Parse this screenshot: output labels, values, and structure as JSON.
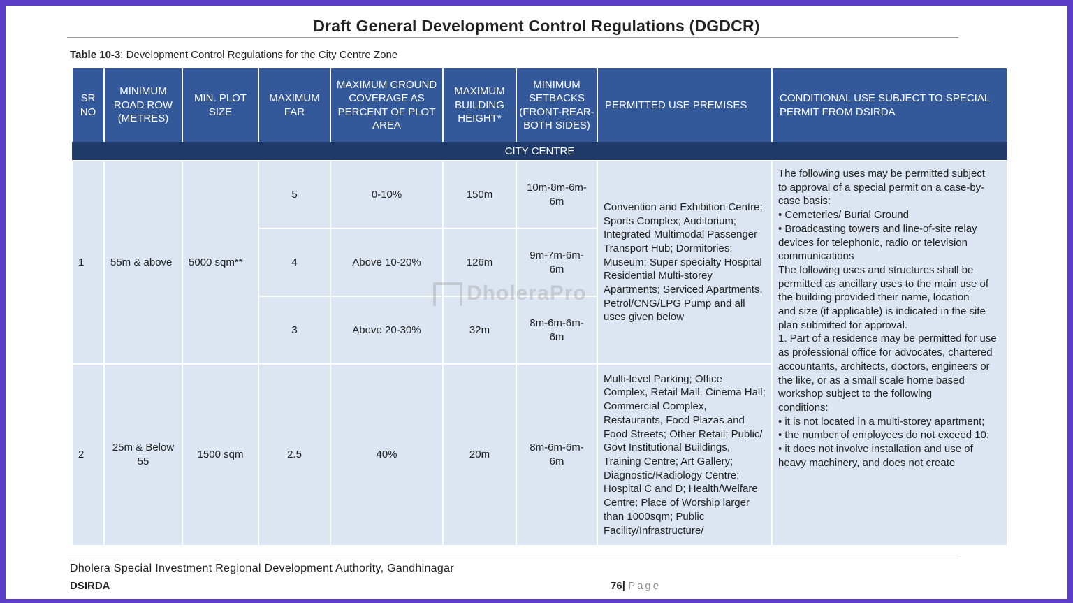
{
  "document": {
    "title": "Draft General Development Control Regulations (DGDCR)",
    "table_caption_label": "Table 10-3",
    "table_caption_text": ": Development Control Regulations for the City Centre Zone"
  },
  "table": {
    "headers": [
      "SR NO",
      "MINIMUM ROAD ROW (METRES)",
      "MIN. PLOT SIZE",
      "MAXIMUM FAR",
      "MAXIMUM GROUND COVERAGE AS PERCENT OF PLOT AREA",
      "MAXIMUM BUILDING HEIGHT*",
      "MINIMUM SETBACKS (FRONT-REAR-BOTH SIDES)",
      "PERMITTED USE PREMISES",
      "CONDITIONAL USE SUBJECT TO SPECIAL PERMIT FROM DSIRDA"
    ],
    "zone_label": "CITY CENTRE",
    "row1": {
      "sr": "1",
      "road_row": "55m & above",
      "plot_size": "5000 sqm**",
      "sub_rows": [
        {
          "far": "5",
          "coverage": "0-10%",
          "height": "150m",
          "setbacks": "10m-8m-6m-6m"
        },
        {
          "far": "4",
          "coverage": "Above 10-20%",
          "height": "126m",
          "setbacks": "9m-7m-6m-6m"
        },
        {
          "far": "3",
          "coverage": "Above 20-30%",
          "height": "32m",
          "setbacks": "8m-6m-6m-6m"
        }
      ],
      "permitted_use": "Convention and Exhibition Centre; Sports Complex; Auditorium;\nIntegrated Multimodal Passenger Transport Hub; Dormitories;\nMuseum; Super specialty Hospital\nResidential Multi-storey Apartments; Serviced Apartments, Petrol/CNG/LPG Pump and all uses given below"
    },
    "row2": {
      "sr": "2",
      "road_row": "25m & Below 55",
      "plot_size": "1500 sqm",
      "far": "2.5",
      "coverage": "40%",
      "height": "20m",
      "setbacks": "8m-6m-6m-6m",
      "permitted_use": "Multi-level Parking; Office Complex, Retail Mall, Cinema Hall; Commercial Complex, Restaurants, Food Plazas and Food Streets; Other Retail; Public/ Govt Institutional Buildings, Training Centre; Art Gallery; Diagnostic/Radiology Centre; Hospital C and D; Health/Welfare Centre; Place of Worship larger than 1000sqm; Public Facility/Infrastructure/"
    },
    "conditional_use": "The following uses may be permitted subject\nto approval of a special permit on a case-by-case basis:\n• Cemeteries/ Burial Ground\n• Broadcasting towers and line-of-site relay devices for telephonic, radio or television communications\nThe following uses and structures shall be permitted as ancillary uses to the main use of the building provided their name, location\nand size (if applicable) is indicated in the site plan submitted for approval.\n1. Part of a residence may be permitted for use as professional office for advocates, chartered accountants, architects, doctors, engineers or the like, or as a small scale home based workshop subject to the following\nconditions:\n• it is not located in a multi-storey apartment;\n• the number of employees do not exceed 10;\n• it does not involve installation and use of heavy machinery, and does not create"
  },
  "watermark": {
    "text": "DholeraPro"
  },
  "footer": {
    "authority": "Dholera Special Investment Regional Development Authority, Gandhinagar",
    "short_name": "DSIRDA",
    "page_number": "76",
    "page_separator": "|",
    "page_word": "Page"
  }
}
